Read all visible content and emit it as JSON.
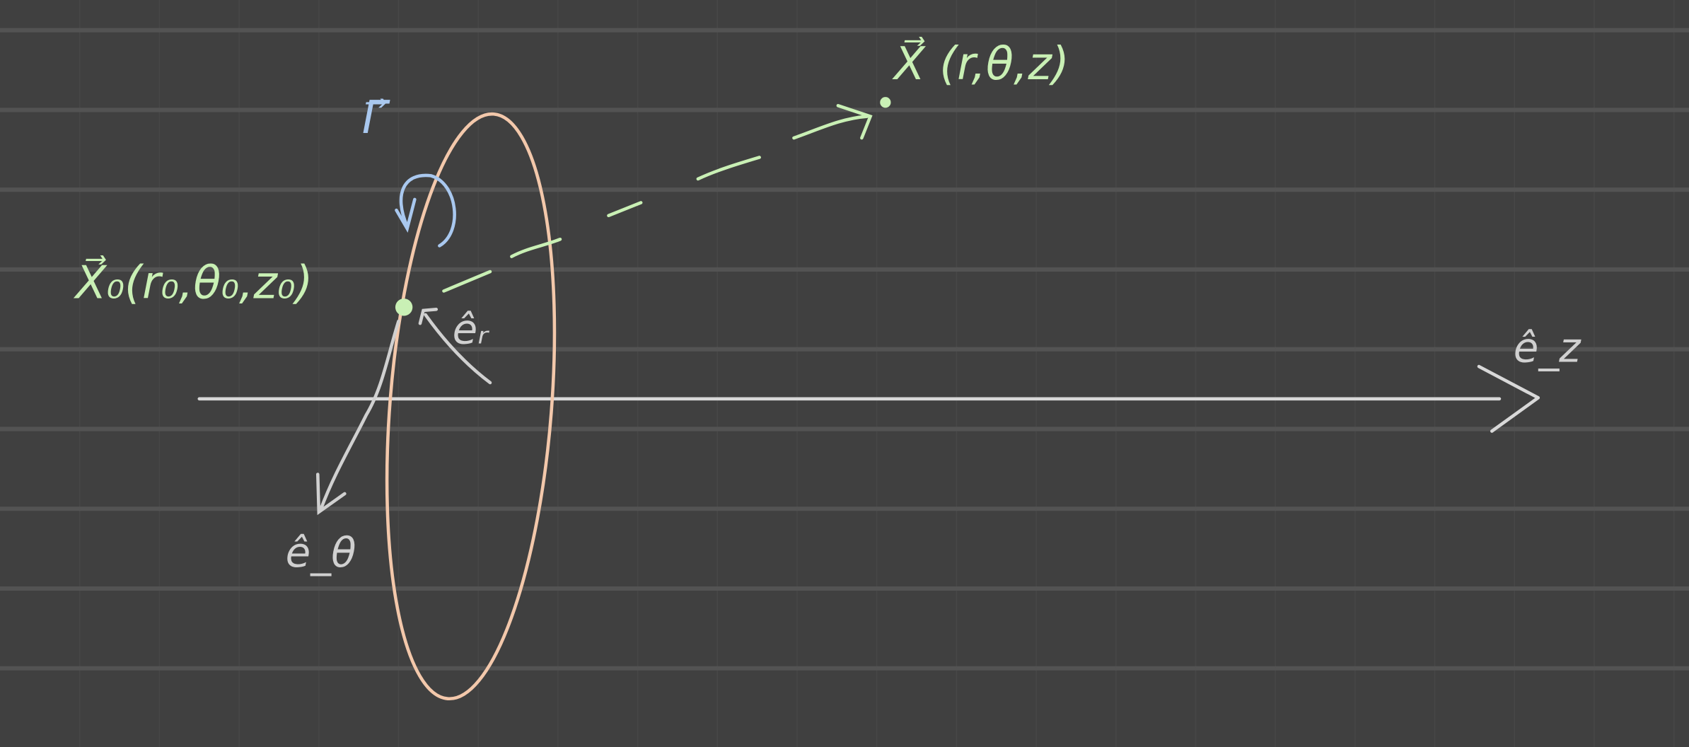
{
  "labels": {
    "source_point": "X⃗₀(r₀,θ₀,z₀)",
    "field_point": "X⃗ (r,θ,z)",
    "circulation": "Γ⃗",
    "e_r": "êᵣ",
    "e_theta": "ê_θ",
    "e_z": "ê_z"
  }
}
